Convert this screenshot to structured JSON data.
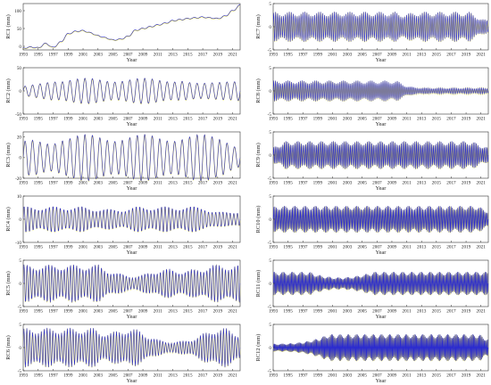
{
  "chart_data": [
    {
      "type": "line",
      "ylabel": "RC1 (mm)",
      "xlabel": "Year",
      "yticks": [
        0,
        50,
        100
      ],
      "ylim": [
        -10,
        120
      ],
      "xlim": [
        1993,
        2022
      ],
      "xticks": [
        1993,
        1995,
        1997,
        1999,
        2001,
        2003,
        2005,
        2007,
        2009,
        2011,
        2013,
        2015,
        2017,
        2019,
        2021
      ],
      "kind": "trend",
      "series": [
        {
          "x": [
            1993,
            1994,
            1995,
            1996,
            1997,
            1998,
            1999,
            2000,
            2001,
            2002,
            2003,
            2004,
            2005,
            2006,
            2007,
            2008,
            2009,
            2010,
            2011,
            2012,
            2013,
            2014,
            2015,
            2016,
            2017,
            2018,
            2019,
            2020,
            2021,
            2022
          ],
          "values": [
            -5,
            -2,
            -4,
            8,
            -3,
            12,
            35,
            42,
            44,
            38,
            30,
            24,
            18,
            20,
            28,
            45,
            50,
            55,
            60,
            65,
            72,
            75,
            78,
            80,
            82,
            80,
            78,
            85,
            100,
            115
          ]
        }
      ]
    },
    {
      "type": "line",
      "ylabel": "RC7 (mm)",
      "xlabel": "Year",
      "yticks": [
        -5,
        0,
        5
      ],
      "ylim": [
        -5,
        5
      ],
      "xlim": [
        1993,
        2022
      ],
      "xticks": [
        1993,
        1995,
        1997,
        1999,
        2001,
        2003,
        2005,
        2007,
        2009,
        2011,
        2013,
        2015,
        2017,
        2019,
        2021
      ],
      "kind": "osc",
      "amp": 2.6,
      "cycles": 110,
      "envseed": 1
    },
    {
      "type": "line",
      "ylabel": "RC2 (mm)",
      "xlabel": "Year",
      "yticks": [
        -50,
        0,
        50
      ],
      "ylim": [
        -50,
        50
      ],
      "xlim": [
        1993,
        2022
      ],
      "xticks": [
        1993,
        1995,
        1997,
        1999,
        2001,
        2003,
        2005,
        2007,
        2009,
        2011,
        2013,
        2015,
        2017,
        2019,
        2021
      ],
      "kind": "osc",
      "amp": 22,
      "cycles": 29,
      "envseed": 2
    },
    {
      "type": "line",
      "ylabel": "RC8 (mm)",
      "xlabel": "Year",
      "yticks": [
        -5,
        0,
        5
      ],
      "ylim": [
        -5,
        5
      ],
      "xlim": [
        1993,
        2022
      ],
      "xticks": [
        1993,
        1995,
        1997,
        1999,
        2001,
        2003,
        2005,
        2007,
        2009,
        2011,
        2013,
        2015,
        2017,
        2019,
        2021
      ],
      "kind": "osc",
      "amp": 1.8,
      "cycles": 120,
      "envseed": 3
    },
    {
      "type": "line",
      "ylabel": "RC3 (mm)",
      "xlabel": "Year",
      "yticks": [
        -20,
        0,
        20
      ],
      "ylim": [
        -20,
        25
      ],
      "xlim": [
        1993,
        2022
      ],
      "xticks": [
        1993,
        1995,
        1997,
        1999,
        2001,
        2003,
        2005,
        2007,
        2009,
        2011,
        2013,
        2015,
        2017,
        2019,
        2021
      ],
      "kind": "osc",
      "amp": 18,
      "cycles": 29,
      "envseed": 4
    },
    {
      "type": "line",
      "ylabel": "RC9 (mm)",
      "xlabel": "Year",
      "yticks": [
        -5,
        0,
        5
      ],
      "ylim": [
        -5,
        5
      ],
      "xlim": [
        1993,
        2022
      ],
      "xticks": [
        1993,
        1995,
        1997,
        1999,
        2001,
        2003,
        2005,
        2007,
        2009,
        2011,
        2013,
        2015,
        2017,
        2019,
        2021
      ],
      "kind": "osc",
      "amp": 2.4,
      "cycles": 140,
      "envseed": 5
    },
    {
      "type": "line",
      "ylabel": "RC4 (mm)",
      "xlabel": "Year",
      "yticks": [
        -10,
        0,
        10
      ],
      "ylim": [
        -10,
        10
      ],
      "xlim": [
        1993,
        2022
      ],
      "xticks": [
        1993,
        1995,
        1997,
        1999,
        2001,
        2003,
        2005,
        2007,
        2009,
        2011,
        2013,
        2015,
        2017,
        2019,
        2021
      ],
      "kind": "osc",
      "amp": 4.5,
      "cycles": 60,
      "envseed": 6
    },
    {
      "type": "line",
      "ylabel": "RC10 (mm)",
      "xlabel": "Year",
      "yticks": [
        -5,
        0,
        5
      ],
      "ylim": [
        -5,
        5
      ],
      "xlim": [
        1993,
        2022
      ],
      "xticks": [
        1993,
        1995,
        1997,
        1999,
        2001,
        2003,
        2005,
        2007,
        2009,
        2011,
        2013,
        2015,
        2017,
        2019,
        2021
      ],
      "kind": "osc",
      "amp": 2.3,
      "cycles": 160,
      "envseed": 7
    },
    {
      "type": "line",
      "ylabel": "RC5 (mm)",
      "xlabel": "Year",
      "yticks": [
        -5,
        0,
        5
      ],
      "ylim": [
        -5,
        5
      ],
      "xlim": [
        1993,
        2022
      ],
      "xticks": [
        1993,
        1995,
        1997,
        1999,
        2001,
        2003,
        2005,
        2007,
        2009,
        2011,
        2013,
        2015,
        2017,
        2019,
        2021
      ],
      "kind": "osc",
      "amp": 3.3,
      "cycles": 70,
      "envseed": 8
    },
    {
      "type": "line",
      "ylabel": "RC11 (mm)",
      "xlabel": "Year",
      "yticks": [
        -5,
        0,
        5
      ],
      "ylim": [
        -5,
        5
      ],
      "xlim": [
        1993,
        2022
      ],
      "xticks": [
        1993,
        1995,
        1997,
        1999,
        2001,
        2003,
        2005,
        2007,
        2009,
        2011,
        2013,
        2015,
        2017,
        2019,
        2021
      ],
      "kind": "osc",
      "amp": 2.0,
      "cycles": 180,
      "envseed": 9
    },
    {
      "type": "line",
      "ylabel": "RC6 (mm)",
      "xlabel": "Year",
      "yticks": [
        -5,
        0,
        5
      ],
      "ylim": [
        -5,
        5
      ],
      "xlim": [
        1993,
        2022
      ],
      "xticks": [
        1993,
        1995,
        1997,
        1999,
        2001,
        2003,
        2005,
        2007,
        2009,
        2011,
        2013,
        2015,
        2017,
        2019,
        2021
      ],
      "kind": "osc",
      "amp": 3.4,
      "cycles": 75,
      "envseed": 10
    },
    {
      "type": "line",
      "ylabel": "RC12 (mm)",
      "xlabel": "Year",
      "yticks": [
        -5,
        0,
        5
      ],
      "ylim": [
        -5,
        5
      ],
      "xlim": [
        1993,
        2022
      ],
      "xticks": [
        1993,
        1995,
        1997,
        1999,
        2001,
        2003,
        2005,
        2007,
        2009,
        2011,
        2013,
        2015,
        2017,
        2019,
        2021
      ],
      "kind": "osc",
      "amp": 2.3,
      "cycles": 200,
      "envseed": 11
    }
  ],
  "colors": {
    "line": "#2a2ad0",
    "fit": "#f2ee20",
    "axis": "#333333"
  }
}
